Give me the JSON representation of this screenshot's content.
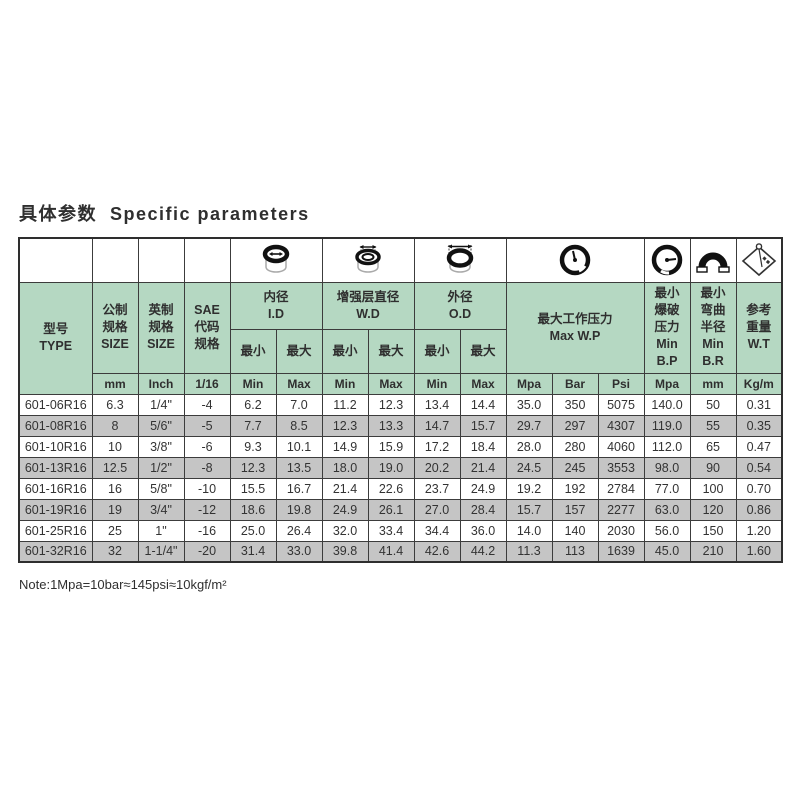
{
  "title": "具体参数  Specific parameters",
  "note": "Note:1Mpa=10bar≈145psi≈10kgf/m²",
  "colors": {
    "header_green": "#b5d8c2",
    "row_grey": "#c5c5c5",
    "grid": "#3c3c3c"
  },
  "table": {
    "headers": {
      "type": "型号\nTYPE",
      "metric_size": "公制\n规格\nSIZE",
      "imperial_size": "英制\n规格\nSIZE",
      "sae_code": "SAE\n代码\n规格",
      "inner_diameter": "内径\nI.D",
      "reinforce_diameter": "增强层直径\nW.D",
      "outer_diameter": "外径\nO.D",
      "max_working_pressure": "最大工作压力\nMax W.P",
      "min_burst_pressure": "最小\n爆破\n压力\nMin\nB.P",
      "min_bend_radius": "最小\n弯曲\n半径\nMin\nB.R",
      "ref_weight": "参考\n重量\nW.T",
      "min_cn": "最小",
      "max_cn": "最大"
    },
    "units": [
      "mm",
      "Inch",
      "1/16",
      "Min",
      "Max",
      "Min",
      "Max",
      "Min",
      "Max",
      "Mpa",
      "Bar",
      "Psi",
      "Mpa",
      "mm",
      "Kg/m"
    ],
    "icons": [
      "inner-diameter-icon",
      "reinforce-diameter-icon",
      "outer-diameter-icon",
      "pressure-gauge-icon",
      "burst-pressure-gauge-icon",
      "bend-radius-icon",
      "weight-icon"
    ],
    "rows": [
      [
        "601-06R16",
        "6.3",
        "1/4\"",
        "-4",
        "6.2",
        "7.0",
        "11.2",
        "12.3",
        "13.4",
        "14.4",
        "35.0",
        "350",
        "5075",
        "140.0",
        "50",
        "0.31"
      ],
      [
        "601-08R16",
        "8",
        "5/6\"",
        "-5",
        "7.7",
        "8.5",
        "12.3",
        "13.3",
        "14.7",
        "15.7",
        "29.7",
        "297",
        "4307",
        "119.0",
        "55",
        "0.35"
      ],
      [
        "601-10R16",
        "10",
        "3/8\"",
        "-6",
        "9.3",
        "10.1",
        "14.9",
        "15.9",
        "17.2",
        "18.4",
        "28.0",
        "280",
        "4060",
        "112.0",
        "65",
        "0.47"
      ],
      [
        "601-13R16",
        "12.5",
        "1/2\"",
        "-8",
        "12.3",
        "13.5",
        "18.0",
        "19.0",
        "20.2",
        "21.4",
        "24.5",
        "245",
        "3553",
        "98.0",
        "90",
        "0.54"
      ],
      [
        "601-16R16",
        "16",
        "5/8\"",
        "-10",
        "15.5",
        "16.7",
        "21.4",
        "22.6",
        "23.7",
        "24.9",
        "19.2",
        "192",
        "2784",
        "77.0",
        "100",
        "0.70"
      ],
      [
        "601-19R16",
        "19",
        "3/4\"",
        "-12",
        "18.6",
        "19.8",
        "24.9",
        "26.1",
        "27.0",
        "28.4",
        "15.7",
        "157",
        "2277",
        "63.0",
        "120",
        "0.86"
      ],
      [
        "601-25R16",
        "25",
        "1\"",
        "-16",
        "25.0",
        "26.4",
        "32.0",
        "33.4",
        "34.4",
        "36.0",
        "14.0",
        "140",
        "2030",
        "56.0",
        "150",
        "1.20"
      ],
      [
        "601-32R16",
        "32",
        "1-1/4\"",
        "-20",
        "31.4",
        "33.0",
        "39.8",
        "41.4",
        "42.6",
        "44.2",
        "11.3",
        "113",
        "1639",
        "45.0",
        "210",
        "1.60"
      ]
    ]
  }
}
